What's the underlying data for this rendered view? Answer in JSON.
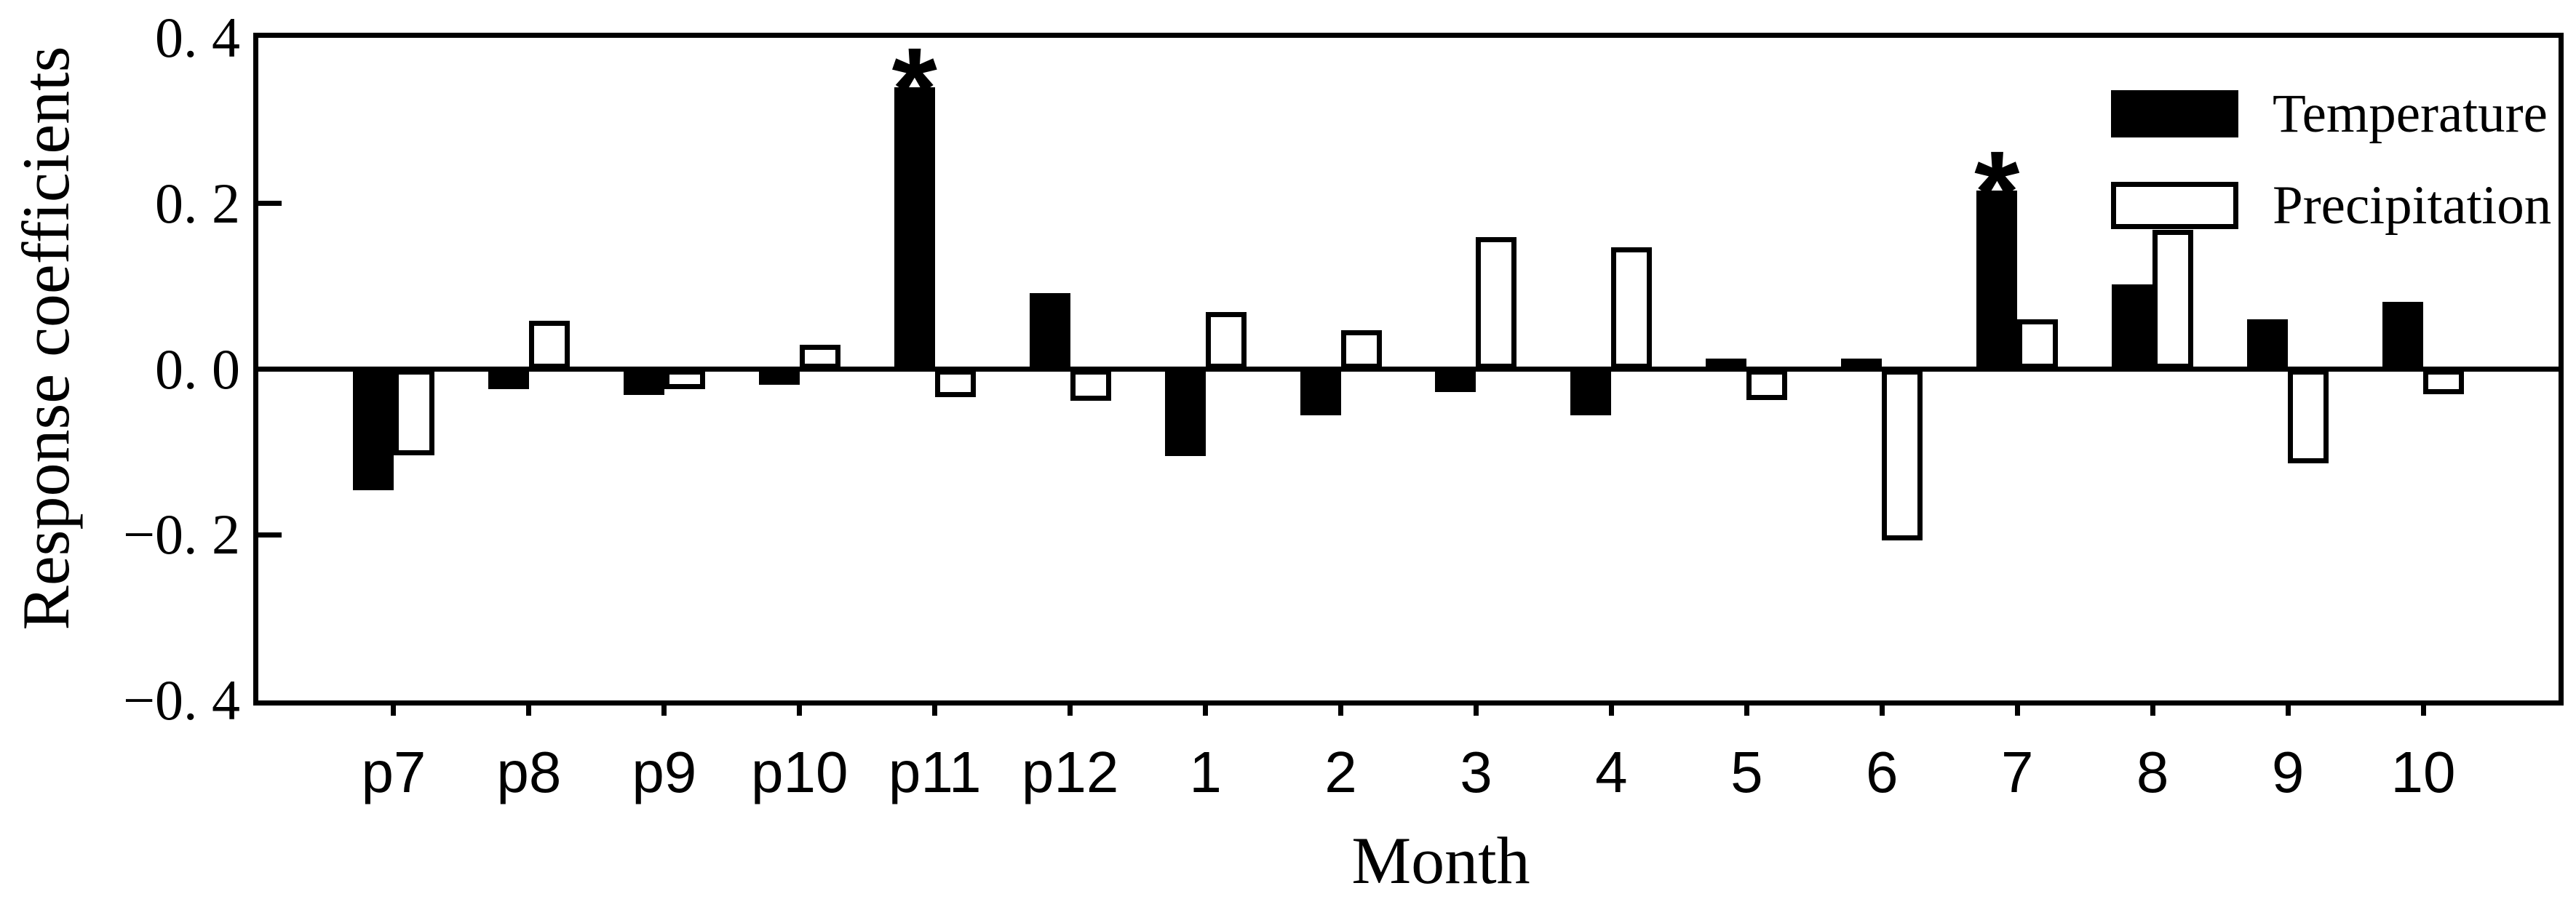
{
  "figure": {
    "background": "#ffffff",
    "ink": "#000000"
  },
  "chart_data": {
    "type": "bar",
    "title": "",
    "xlabel": "Month",
    "ylabel": "Response coefficients",
    "categories": [
      "p7",
      "p8",
      "p9",
      "p10",
      "p11",
      "p12",
      "1",
      "2",
      "3",
      "4",
      "5",
      "6",
      "7",
      "8",
      "9",
      "10"
    ],
    "series": [
      {
        "name": "Temperature",
        "style": "filled",
        "fill": "#000000",
        "values": [
          -0.146,
          -0.024,
          -0.031,
          -0.019,
          0.34,
          0.092,
          -0.105,
          -0.056,
          -0.028,
          -0.056,
          0.013,
          0.013,
          0.216,
          0.102,
          0.06,
          0.081
        ],
        "significant": [
          false,
          false,
          false,
          false,
          true,
          false,
          false,
          false,
          false,
          false,
          false,
          false,
          true,
          false,
          false,
          false
        ]
      },
      {
        "name": "Precipitation",
        "style": "open",
        "fill": "#ffffff",
        "values": [
          -0.104,
          0.058,
          -0.024,
          0.029,
          -0.034,
          -0.038,
          0.069,
          0.047,
          0.159,
          0.147,
          -0.037,
          -0.207,
          0.06,
          0.168,
          -0.114,
          -0.03
        ],
        "significant": [
          false,
          false,
          false,
          false,
          false,
          false,
          false,
          false,
          false,
          false,
          false,
          false,
          false,
          false,
          false,
          false
        ]
      }
    ],
    "significance_marker": "*",
    "ylim": [
      -0.4,
      0.4
    ],
    "y_ticks": [
      {
        "value": 0.4,
        "label": "0. 4"
      },
      {
        "value": 0.2,
        "label": "0. 2"
      },
      {
        "value": 0.0,
        "label": "0. 0"
      },
      {
        "value": -0.2,
        "label": "−0. 2"
      },
      {
        "value": -0.4,
        "label": "−0. 4"
      }
    ],
    "zero_line": true,
    "grid": "off",
    "legend_position": "top-right-inside"
  }
}
